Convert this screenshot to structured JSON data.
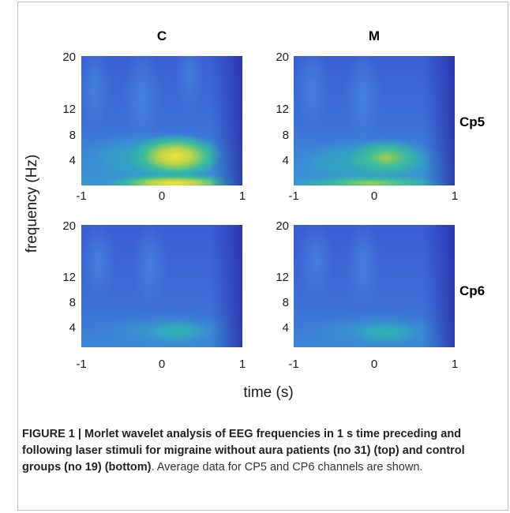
{
  "figure": {
    "column_titles": [
      "C",
      "M"
    ],
    "row_labels": [
      "Cp5",
      "Cp6"
    ],
    "ylabel": "frequency (Hz)",
    "xlabel": "time (s)"
  },
  "caption": {
    "bold": "FIGURE 1 | Morlet wavelet analysis of EEG frequencies in 1 s time preceding and following laser stimuli for migraine without aura patients (no 31) (top) and control groups (no 19) (bottom)",
    "rest": ". Average data for CP5 and CP6 channels are shown."
  },
  "colors": {
    "low": "#3b5bd6",
    "mid": "#27b2a6",
    "high": "#f5e33a"
  },
  "chart_data": [
    {
      "type": "heatmap",
      "title": "C",
      "row": "Cp5",
      "x_ticks": [
        -1,
        0,
        1
      ],
      "y_ticks": [
        4,
        8,
        12,
        20
      ],
      "xlim": [
        -1,
        1
      ],
      "ylim": [
        1,
        20
      ],
      "peak": {
        "x": 0.2,
        "y": 3,
        "level": "high"
      }
    },
    {
      "type": "heatmap",
      "title": "M",
      "row": "Cp5",
      "x_ticks": [
        -1,
        0,
        1
      ],
      "y_ticks": [
        4,
        8,
        12,
        20
      ],
      "xlim": [
        -1,
        1
      ],
      "ylim": [
        1,
        20
      ],
      "peak": {
        "x": 0.2,
        "y": 3,
        "level": "medium"
      }
    },
    {
      "type": "heatmap",
      "title": "C",
      "row": "Cp6",
      "x_ticks": [
        -1,
        0,
        1
      ],
      "y_ticks": [
        4,
        8,
        12,
        20
      ],
      "xlim": [
        -1,
        1
      ],
      "ylim": [
        1,
        20
      ],
      "peak": {
        "x": 0.2,
        "y": 3,
        "level": "low"
      }
    },
    {
      "type": "heatmap",
      "title": "M",
      "row": "Cp6",
      "x_ticks": [
        -1,
        0,
        1
      ],
      "y_ticks": [
        4,
        8,
        12,
        20
      ],
      "xlim": [
        -1,
        1
      ],
      "ylim": [
        1,
        20
      ],
      "peak": {
        "x": 0.2,
        "y": 3,
        "level": "low"
      }
    }
  ]
}
